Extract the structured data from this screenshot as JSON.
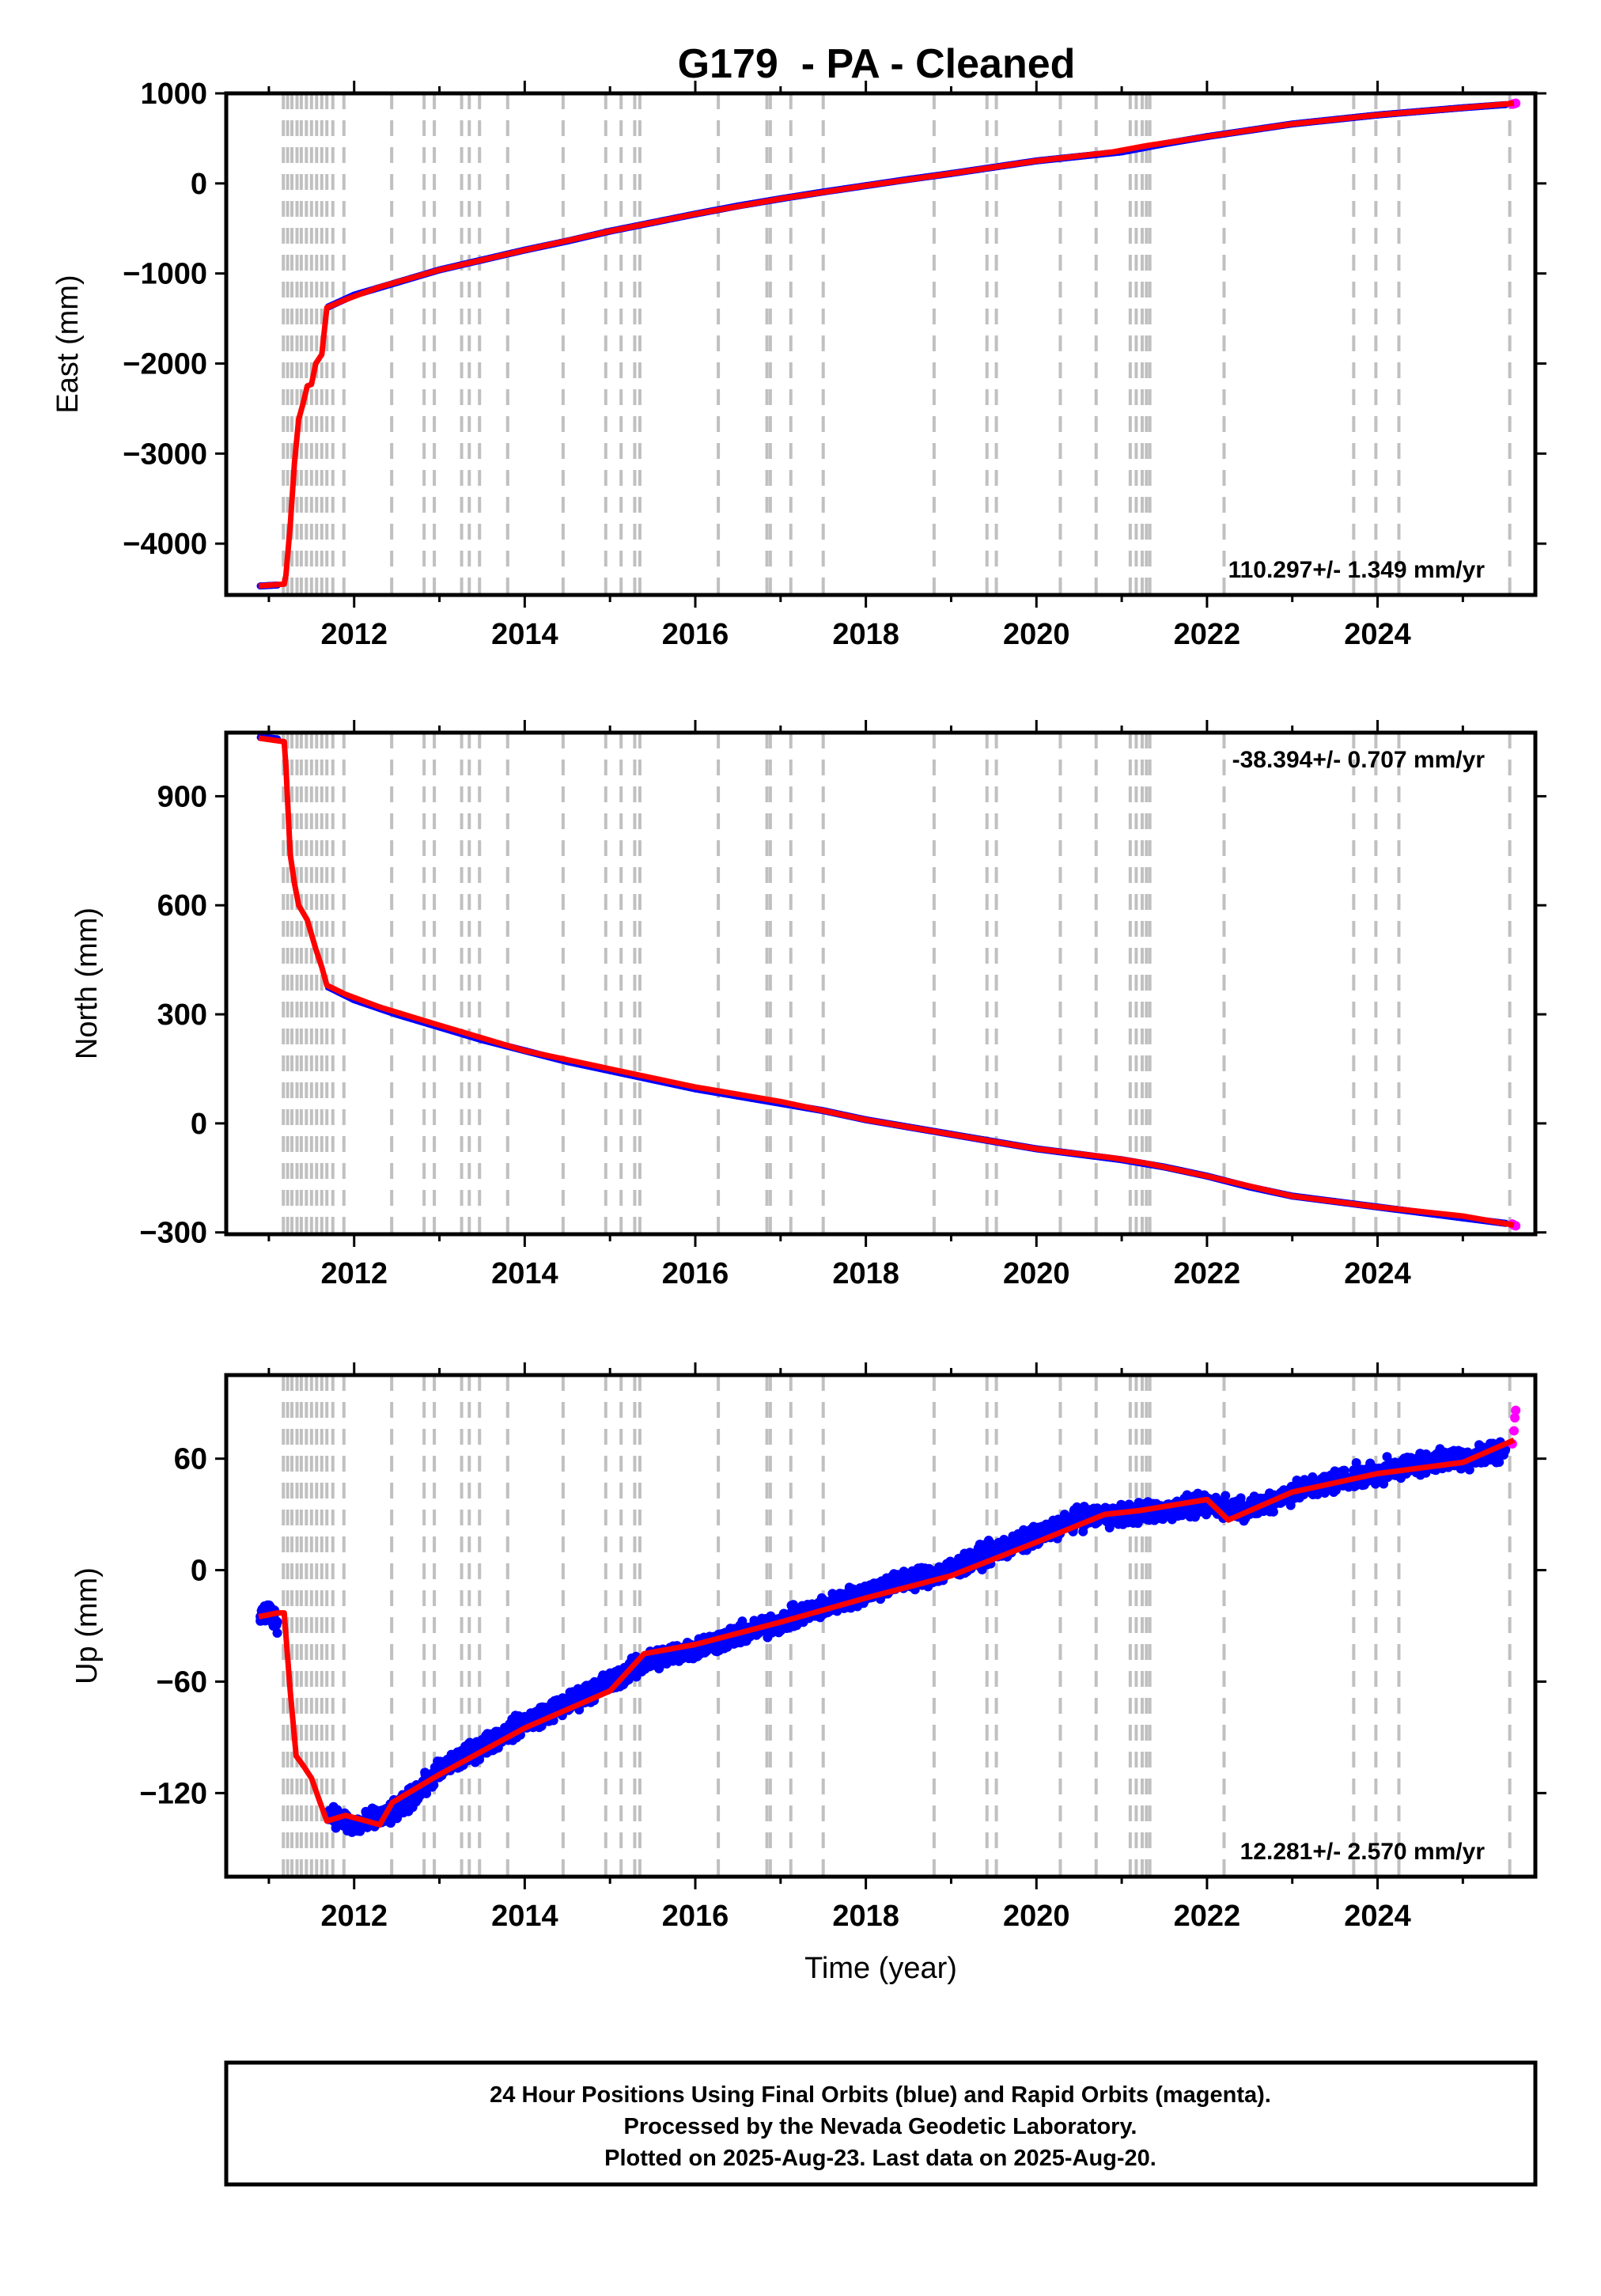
{
  "figure": {
    "title": "G179  - PA - Cleaned",
    "footer": [
      "24 Hour Positions Using Final Orbits (blue) and Rapid Orbits (magenta).",
      "Processed by the Nevada Geodetic Laboratory.",
      "Plotted on 2025-Aug-23. Last data on 2025-Aug-20."
    ]
  },
  "colors": {
    "final_orbits": "#0000ff",
    "rapid_orbits": "#ff00ff",
    "model": "#ff0000",
    "event_lines": "#c0c0c0",
    "frame": "#000000"
  },
  "chart_data": [
    {
      "type": "scatter",
      "component": "east",
      "ylabel": "East (mm)",
      "xlabel": "",
      "xlim": [
        2010.5,
        2025.85
      ],
      "ylim": [
        -4570,
        1000
      ],
      "yticks": [
        1000,
        0,
        -1000,
        -2000,
        -3000,
        -4000
      ],
      "ytick_labels": [
        "1000",
        "0",
        "−1000",
        "−2000",
        "−3000",
        "−4000"
      ],
      "xticks": [
        2012,
        2014,
        2016,
        2018,
        2020,
        2022,
        2024
      ],
      "xtick_labels": [
        "2012",
        "2014",
        "2016",
        "2018",
        "2020",
        "2022",
        "2024"
      ],
      "rate_text": "110.297+/- 1.349 mm/yr",
      "rate_position": "bottom-right",
      "event_lines_x": [
        2011.17,
        2011.22,
        2011.27,
        2011.33,
        2011.38,
        2011.44,
        2011.5,
        2011.56,
        2011.62,
        2011.68,
        2011.75,
        2011.88,
        2012.44,
        2012.82,
        2012.94,
        2013.26,
        2013.35,
        2013.47,
        2013.8,
        2014.45,
        2014.95,
        2015.13,
        2015.29,
        2015.35,
        2016.27,
        2016.84,
        2016.88,
        2017.12,
        2017.5,
        2018.8,
        2019.42,
        2019.53,
        2020.28,
        2020.7,
        2021.1,
        2021.17,
        2021.24,
        2021.29,
        2021.33,
        2022.2,
        2023.72,
        2023.98,
        2024.25,
        2025.55
      ],
      "model": {
        "x": [
          2010.88,
          2011.18,
          2011.2,
          2011.25,
          2011.3,
          2011.35,
          2011.4,
          2011.45,
          2011.5,
          2011.55,
          2011.62,
          2011.68,
          2011.9,
          2012.3,
          2013.0,
          2014.0,
          2015.0,
          2016.0,
          2017.0,
          2018.0,
          2019.0,
          2020.0,
          2020.9,
          2021.3,
          2022.0,
          2023.0,
          2024.0,
          2025.0,
          2025.6
        ],
        "y": [
          -4470,
          -4450,
          -4350,
          -3800,
          -3100,
          -2620,
          -2450,
          -2250,
          -2230,
          -2000,
          -1900,
          -1380,
          -1290,
          -1150,
          -960,
          -740,
          -530,
          -340,
          -170,
          -25,
          110,
          250,
          350,
          420,
          520,
          660,
          760,
          840,
          890
        ]
      },
      "series": [
        {
          "name": "Final Orbits (blue)",
          "x": [
            2010.9,
            2011.0,
            2011.1,
            2011.7,
            2012.0,
            2012.5,
            2013.0,
            2013.5,
            2014.0,
            2014.5,
            2015.0,
            2015.5,
            2016.0,
            2016.5,
            2017.0,
            2017.5,
            2018.0,
            2018.5,
            2019.0,
            2019.5,
            2020.0,
            2020.5,
            2021.0,
            2021.5,
            2022.0,
            2022.5,
            2023.0,
            2023.5,
            2024.0,
            2024.5,
            2025.0,
            2025.5
          ],
          "y": [
            -4470,
            -4465,
            -4460,
            -1370,
            -1240,
            -1100,
            -960,
            -850,
            -740,
            -640,
            -530,
            -435,
            -340,
            -250,
            -170,
            -95,
            -25,
            45,
            110,
            180,
            250,
            300,
            350,
            440,
            520,
            590,
            660,
            710,
            760,
            800,
            840,
            875
          ]
        },
        {
          "name": "Rapid Orbits (magenta)",
          "x": [
            2025.58,
            2025.6,
            2025.62
          ],
          "y": [
            880,
            885,
            890
          ]
        }
      ]
    },
    {
      "type": "scatter",
      "component": "north",
      "ylabel": "North (mm)",
      "xlabel": "",
      "xlim": [
        2010.5,
        2025.85
      ],
      "ylim": [
        -305,
        1075
      ],
      "yticks": [
        900,
        600,
        300,
        0,
        -300
      ],
      "ytick_labels": [
        "900",
        "600",
        "300",
        "0",
        "−300"
      ],
      "xticks": [
        2012,
        2014,
        2016,
        2018,
        2020,
        2022,
        2024
      ],
      "xtick_labels": [
        "2012",
        "2014",
        "2016",
        "2018",
        "2020",
        "2022",
        "2024"
      ],
      "rate_text": "-38.394+/- 0.707 mm/yr",
      "rate_position": "top-right",
      "event_lines_x": [
        2011.17,
        2011.22,
        2011.27,
        2011.33,
        2011.38,
        2011.44,
        2011.5,
        2011.56,
        2011.62,
        2011.68,
        2011.75,
        2011.88,
        2012.44,
        2012.82,
        2012.94,
        2013.26,
        2013.35,
        2013.47,
        2013.8,
        2014.45,
        2014.95,
        2015.13,
        2015.29,
        2015.35,
        2016.27,
        2016.84,
        2016.88,
        2017.12,
        2017.5,
        2018.8,
        2019.42,
        2019.53,
        2020.28,
        2020.7,
        2021.1,
        2021.17,
        2021.24,
        2021.29,
        2021.33,
        2022.2,
        2023.72,
        2023.98,
        2024.25,
        2025.55
      ],
      "model": {
        "x": [
          2010.88,
          2011.18,
          2011.2,
          2011.25,
          2011.3,
          2011.35,
          2011.4,
          2011.45,
          2011.5,
          2011.55,
          2011.62,
          2011.68,
          2011.9,
          2012.3,
          2013.0,
          2014.0,
          2015.0,
          2016.0,
          2017.0,
          2018.0,
          2019.0,
          2020.0,
          2020.9,
          2021.3,
          2022.0,
          2023.0,
          2024.0,
          2025.0,
          2025.6
        ],
        "y": [
          1060,
          1050,
          980,
          740,
          660,
          600,
          580,
          560,
          520,
          480,
          430,
          380,
          355,
          320,
          270,
          200,
          150,
          100,
          60,
          10,
          -30,
          -70,
          -95,
          -110,
          -145,
          -200,
          -230,
          -255,
          -280
        ]
      },
      "series": [
        {
          "name": "Final Orbits (blue)",
          "x": [
            2010.9,
            2011.0,
            2011.1,
            2011.7,
            2012.0,
            2012.5,
            2013.0,
            2013.5,
            2014.0,
            2014.5,
            2015.0,
            2015.5,
            2016.0,
            2016.5,
            2017.0,
            2017.5,
            2018.0,
            2018.5,
            2019.0,
            2019.5,
            2020.0,
            2020.5,
            2021.0,
            2021.5,
            2022.0,
            2022.5,
            2023.0,
            2023.5,
            2024.0,
            2024.5,
            2025.0,
            2025.5
          ],
          "y": [
            1062,
            1060,
            1058,
            375,
            340,
            300,
            265,
            230,
            200,
            170,
            145,
            120,
            95,
            75,
            55,
            35,
            10,
            -10,
            -30,
            -50,
            -70,
            -85,
            -100,
            -120,
            -145,
            -175,
            -200,
            -215,
            -230,
            -245,
            -260,
            -275
          ]
        },
        {
          "name": "Rapid Orbits (magenta)",
          "x": [
            2025.58,
            2025.6,
            2025.62
          ],
          "y": [
            -277,
            -280,
            -282
          ]
        }
      ]
    },
    {
      "type": "scatter",
      "component": "up",
      "ylabel": "Up (mm)",
      "xlabel": "Time (year)",
      "xlim": [
        2010.5,
        2025.85
      ],
      "ylim": [
        -165,
        105
      ],
      "yticks": [
        60,
        0,
        -60,
        -120
      ],
      "ytick_labels": [
        "60",
        "0",
        "−60",
        "−120"
      ],
      "xticks": [
        2012,
        2014,
        2016,
        2018,
        2020,
        2022,
        2024
      ],
      "xtick_labels": [
        "2012",
        "2014",
        "2016",
        "2018",
        "2020",
        "2022",
        "2024"
      ],
      "rate_text": "12.281+/- 2.570 mm/yr",
      "rate_position": "bottom-right",
      "event_lines_x": [
        2011.17,
        2011.22,
        2011.27,
        2011.33,
        2011.38,
        2011.44,
        2011.5,
        2011.56,
        2011.62,
        2011.68,
        2011.75,
        2011.88,
        2012.44,
        2012.82,
        2012.94,
        2013.26,
        2013.35,
        2013.47,
        2013.8,
        2014.45,
        2014.95,
        2015.13,
        2015.29,
        2015.35,
        2016.27,
        2016.84,
        2016.88,
        2017.12,
        2017.5,
        2018.8,
        2019.42,
        2019.53,
        2020.28,
        2020.7,
        2021.1,
        2021.17,
        2021.24,
        2021.29,
        2021.33,
        2022.2,
        2023.72,
        2023.98,
        2024.25,
        2025.55
      ],
      "scatter_band": 8,
      "model": {
        "x": [
          2010.88,
          2011.0,
          2011.1,
          2011.18,
          2011.25,
          2011.32,
          2011.4,
          2011.5,
          2011.6,
          2011.68,
          2011.9,
          2012.3,
          2012.45,
          2013.0,
          2014.0,
          2015.0,
          2015.4,
          2016.0,
          2017.0,
          2018.0,
          2019.0,
          2020.0,
          2020.8,
          2021.2,
          2022.0,
          2022.25,
          2023.0,
          2024.0,
          2025.0,
          2025.6
        ],
        "y": [
          -25,
          -24,
          -23,
          -23,
          -65,
          -100,
          -105,
          -112,
          -125,
          -135,
          -132,
          -137,
          -125,
          -110,
          -85,
          -65,
          -45,
          -40,
          -28,
          -15,
          -3,
          15,
          30,
          32,
          38,
          27,
          42,
          52,
          58,
          70
        ]
      },
      "series": [
        {
          "name": "Final Orbits (blue)",
          "x": [
            2010.9,
            2011.0,
            2011.1,
            2011.7,
            2012.0,
            2012.5,
            2013.0,
            2013.5,
            2014.0,
            2014.5,
            2015.0,
            2015.5,
            2016.0,
            2016.5,
            2017.0,
            2017.5,
            2018.0,
            2018.5,
            2019.0,
            2019.5,
            2020.0,
            2020.5,
            2021.0,
            2021.5,
            2022.0,
            2022.5,
            2023.0,
            2023.5,
            2024.0,
            2024.5,
            2025.0,
            2025.5
          ],
          "y": [
            -25,
            -22,
            -28,
            -130,
            -138,
            -130,
            -108,
            -95,
            -82,
            -72,
            -60,
            -48,
            -42,
            -35,
            -28,
            -20,
            -12,
            -5,
            0,
            10,
            18,
            28,
            30,
            32,
            35,
            33,
            42,
            48,
            52,
            58,
            60,
            65
          ]
        },
        {
          "name": "Rapid Orbits (magenta)",
          "x": [
            2025.58,
            2025.6,
            2025.61,
            2025.62
          ],
          "y": [
            68,
            75,
            82,
            86
          ]
        }
      ]
    }
  ]
}
